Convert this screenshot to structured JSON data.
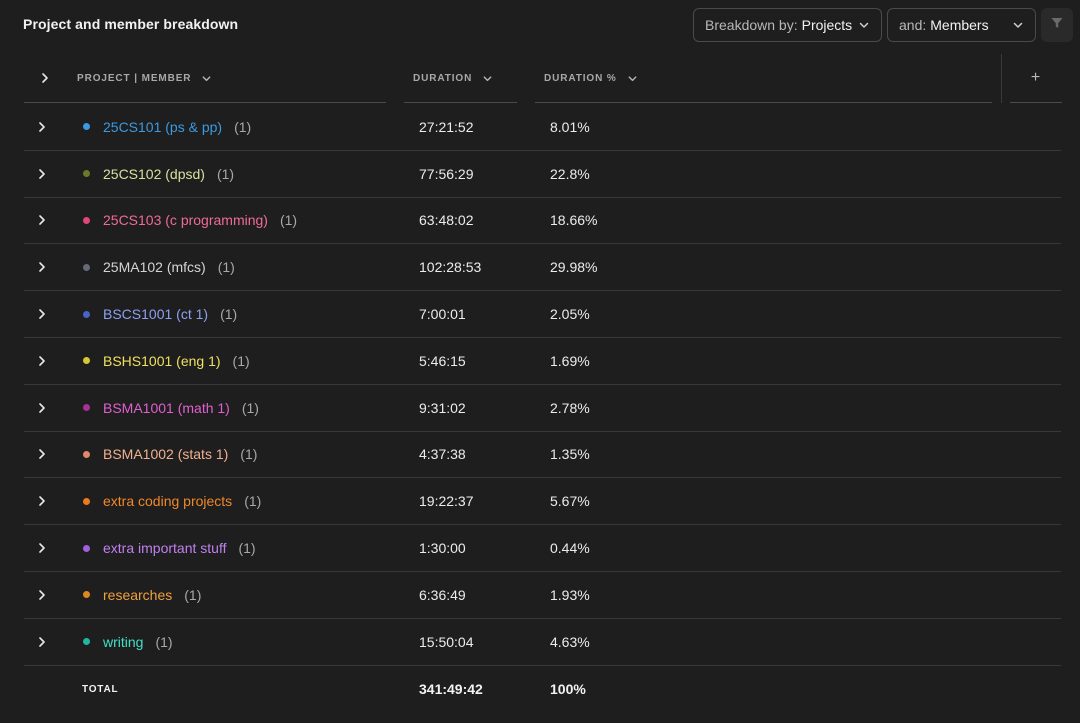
{
  "header": {
    "title": "Project and member breakdown",
    "breakdown_prefix": "Breakdown by:",
    "breakdown_value": "Projects",
    "and_prefix": "and:",
    "and_value": "Members"
  },
  "columns": {
    "name": "PROJECT | MEMBER",
    "duration": "DURATION",
    "duration_pct": "DURATION %",
    "add": "+"
  },
  "rows": [
    {
      "name": "25CS101 (ps & pp)",
      "count": "(1)",
      "duration": "27:21:52",
      "pct": "8.01%",
      "color": "#3b9ae1"
    },
    {
      "name": "25CS102 (dpsd)",
      "count": "(1)",
      "duration": "77:56:29",
      "pct": "22.8%",
      "color": "#d8e0a0",
      "dot": "#6b7a2a"
    },
    {
      "name": "25CS103 (c programming)",
      "count": "(1)",
      "duration": "63:48:02",
      "pct": "18.66%",
      "color": "#f06a9a",
      "dot": "#e0457d"
    },
    {
      "name": "25MA102 (mfcs)",
      "count": "(1)",
      "duration": "102:28:53",
      "pct": "29.98%",
      "color": "#d4d4d4",
      "dot": "#666a78"
    },
    {
      "name": "BSCS1001 (ct 1)",
      "count": "(1)",
      "duration": "7:00:01",
      "pct": "2.05%",
      "color": "#8ea0f0",
      "dot": "#4a63c8"
    },
    {
      "name": "BSHS1001 (eng 1)",
      "count": "(1)",
      "duration": "5:46:15",
      "pct": "1.69%",
      "color": "#f0e060",
      "dot": "#d8c830"
    },
    {
      "name": "BSMA1001 (math 1)",
      "count": "(1)",
      "duration": "9:31:02",
      "pct": "2.78%",
      "color": "#e060d0",
      "dot": "#a83098"
    },
    {
      "name": "BSMA1002 (stats 1)",
      "count": "(1)",
      "duration": "4:37:38",
      "pct": "1.35%",
      "color": "#f0b090",
      "dot": "#e08868"
    },
    {
      "name": "extra coding projects",
      "count": "(1)",
      "duration": "19:22:37",
      "pct": "5.67%",
      "color": "#f0882a",
      "dot": "#f07a1a"
    },
    {
      "name": "extra important stuff",
      "count": "(1)",
      "duration": "1:30:00",
      "pct": "0.44%",
      "color": "#c080f0",
      "dot": "#a060e0"
    },
    {
      "name": "researches",
      "count": "(1)",
      "duration": "6:36:49",
      "pct": "1.93%",
      "color": "#f0a040",
      "dot": "#e08820"
    },
    {
      "name": "writing",
      "count": "(1)",
      "duration": "15:50:04",
      "pct": "4.63%",
      "color": "#40e0c8",
      "dot": "#20b8a0"
    }
  ],
  "total": {
    "label": "TOTAL",
    "duration": "341:49:42",
    "pct": "100%"
  }
}
